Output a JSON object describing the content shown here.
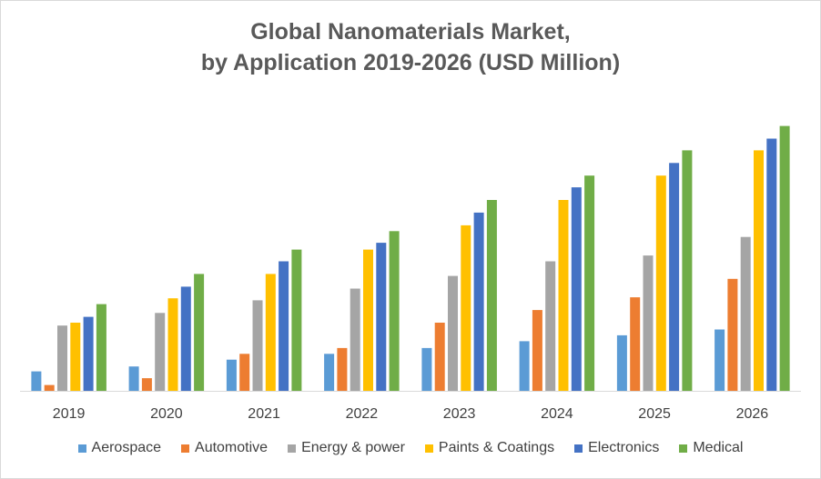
{
  "chart_data": {
    "type": "bar",
    "title_line1": "Global Nanomaterials Market,",
    "title_line2": "by Application 2019-2026 (USD Million)",
    "xlabel": "",
    "ylabel": "",
    "categories": [
      "2019",
      "2020",
      "2021",
      "2022",
      "2023",
      "2024",
      "2025",
      "2026"
    ],
    "ylim": [
      0,
      280
    ],
    "grid": false,
    "legend_position": "bottom",
    "series": [
      {
        "name": "Aerospace",
        "color": "#5B9BD5",
        "values": [
          20,
          25,
          32,
          38,
          44,
          51,
          57,
          63
        ]
      },
      {
        "name": "Automotive",
        "color": "#ED7D31",
        "values": [
          6,
          13,
          38,
          44,
          70,
          83,
          96,
          115
        ]
      },
      {
        "name": "Energy & power",
        "color": "#A5A5A5",
        "values": [
          67,
          80,
          93,
          105,
          118,
          133,
          139,
          158
        ]
      },
      {
        "name": "Paints & Coatings",
        "color": "#FFC000",
        "values": [
          70,
          95,
          120,
          145,
          170,
          196,
          221,
          247
        ]
      },
      {
        "name": "Electronics",
        "color": "#4472C4",
        "values": [
          76,
          107,
          133,
          152,
          183,
          209,
          234,
          259
        ]
      },
      {
        "name": "Medical",
        "color": "#70AD47",
        "values": [
          89,
          120,
          145,
          164,
          196,
          221,
          247,
          272
        ]
      }
    ]
  }
}
